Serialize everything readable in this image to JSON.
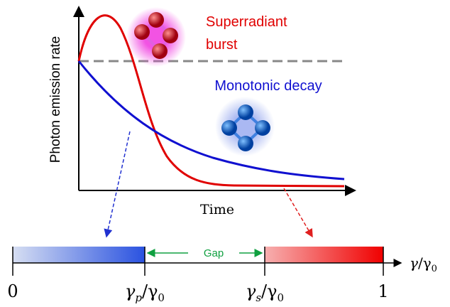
{
  "y_axis_label": "Photon emission rate",
  "x_axis_label": "Time",
  "burst_label": [
    "Superradiant",
    "burst"
  ],
  "decay_label": "Monotonic decay",
  "gap_label": "Gap",
  "rate_axis": {
    "base": "γ",
    "over": "/γ",
    "sub": "0"
  },
  "rate_ticks": [
    {
      "label": "0"
    },
    {
      "base": "γ",
      "sub": "p",
      "over": "/γ",
      "sub2": "0"
    },
    {
      "base": "γ",
      "sub": "s",
      "over": "/γ",
      "sub2": "0"
    },
    {
      "label": "1"
    }
  ]
}
